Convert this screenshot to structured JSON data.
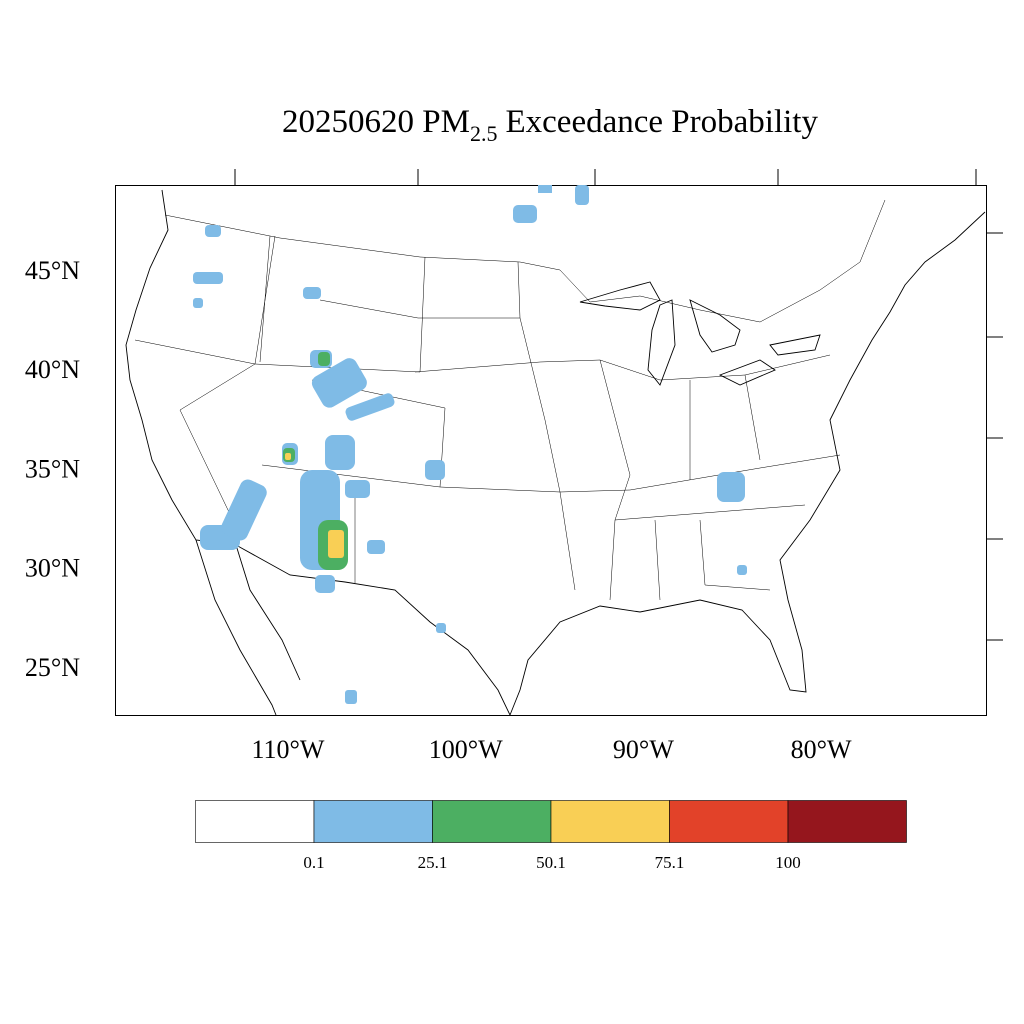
{
  "title": {
    "prefix": "20250620 PM",
    "subscript": "2.5",
    "suffix": "Exceedance Probability"
  },
  "map": {
    "lat_ticks": [
      {
        "value": 45,
        "label": "45°N"
      },
      {
        "value": 40,
        "label": "40°N"
      },
      {
        "value": 35,
        "label": "35°N"
      },
      {
        "value": 30,
        "label": "30°N"
      },
      {
        "value": 25,
        "label": "25°N"
      }
    ],
    "lon_ticks": [
      {
        "value": -110,
        "label": "110°W"
      },
      {
        "value": -100,
        "label": "100°W"
      },
      {
        "value": -90,
        "label": "90°W"
      },
      {
        "value": -80,
        "label": "80°W"
      }
    ]
  },
  "colorbar": {
    "colors": [
      "#ffffff",
      "#7fbbe6",
      "#4caf62",
      "#f9cf55",
      "#e24229",
      "#95161d"
    ],
    "boundaries": [
      0.1,
      25.1,
      50.1,
      75.1,
      100
    ]
  }
}
